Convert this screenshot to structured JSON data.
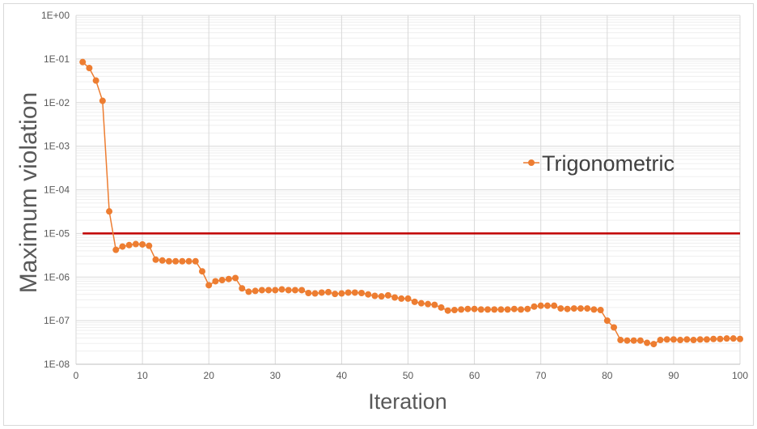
{
  "chart_data": {
    "type": "line",
    "title": "",
    "xlabel": "Iteration",
    "ylabel": "Maximum violation",
    "yscale": "log",
    "xlim": [
      0,
      100
    ],
    "ylim": [
      1e-08,
      1
    ],
    "x_ticks": [
      "0",
      "10",
      "20",
      "30",
      "40",
      "50",
      "60",
      "70",
      "80",
      "90",
      "100"
    ],
    "y_ticks": [
      "1E-08",
      "1E-07",
      "1E-06",
      "1E-05",
      "1E-04",
      "1E-03",
      "1E-02",
      "1E-01",
      "1E+00"
    ],
    "grid": true,
    "legend_position": "right",
    "series": [
      {
        "name": "Trigonometric",
        "color": "#ED7D31",
        "marker": "circle",
        "x": [
          1,
          2,
          3,
          4,
          5,
          6,
          7,
          8,
          9,
          10,
          11,
          12,
          13,
          14,
          15,
          16,
          17,
          18,
          19,
          20,
          21,
          22,
          23,
          24,
          25,
          26,
          27,
          28,
          29,
          30,
          31,
          32,
          33,
          34,
          35,
          36,
          37,
          38,
          39,
          40,
          41,
          42,
          43,
          44,
          45,
          46,
          47,
          48,
          49,
          50,
          51,
          52,
          53,
          54,
          55,
          56,
          57,
          58,
          59,
          60,
          61,
          62,
          63,
          64,
          65,
          66,
          67,
          68,
          69,
          70,
          71,
          72,
          73,
          74,
          75,
          76,
          77,
          78,
          79,
          80,
          81,
          82,
          83,
          84,
          85,
          86,
          87,
          88,
          89,
          90,
          91,
          92,
          93,
          94,
          95,
          96,
          97,
          98,
          99,
          100
        ],
        "y": [
          0.085,
          0.062,
          0.032,
          0.011,
          3.2e-05,
          4.2e-06,
          5e-06,
          5.4e-06,
          5.7e-06,
          5.6e-06,
          5.2e-06,
          2.5e-06,
          2.4e-06,
          2.3e-06,
          2.3e-06,
          2.3e-06,
          2.3e-06,
          2.3e-06,
          1.35e-06,
          6.5e-07,
          8e-07,
          8.5e-07,
          9e-07,
          9.5e-07,
          5.5e-07,
          4.6e-07,
          4.8e-07,
          5e-07,
          5e-07,
          5e-07,
          5.2e-07,
          5e-07,
          5e-07,
          5e-07,
          4.3e-07,
          4.2e-07,
          4.4e-07,
          4.5e-07,
          4.1e-07,
          4.2e-07,
          4.4e-07,
          4.4e-07,
          4.3e-07,
          4e-07,
          3.7e-07,
          3.6e-07,
          3.8e-07,
          3.4e-07,
          3.2e-07,
          3.2e-07,
          2.7e-07,
          2.5e-07,
          2.4e-07,
          2.3e-07,
          2e-07,
          1.7e-07,
          1.75e-07,
          1.8e-07,
          1.85e-07,
          1.85e-07,
          1.8e-07,
          1.8e-07,
          1.8e-07,
          1.8e-07,
          1.8e-07,
          1.85e-07,
          1.8e-07,
          1.85e-07,
          2.1e-07,
          2.2e-07,
          2.2e-07,
          2.2e-07,
          1.9e-07,
          1.85e-07,
          1.9e-07,
          1.9e-07,
          1.9e-07,
          1.8e-07,
          1.75e-07,
          1e-07,
          7e-08,
          3.6e-08,
          3.5e-08,
          3.5e-08,
          3.5e-08,
          3.1e-08,
          2.9e-08,
          3.6e-08,
          3.7e-08,
          3.7e-08,
          3.6e-08,
          3.7e-08,
          3.6e-08,
          3.7e-08,
          3.7e-08,
          3.8e-08,
          3.8e-08,
          3.9e-08,
          3.9e-08,
          3.8e-08
        ]
      }
    ],
    "threshold_line": {
      "y": 1e-05,
      "color": "#C00000"
    }
  }
}
